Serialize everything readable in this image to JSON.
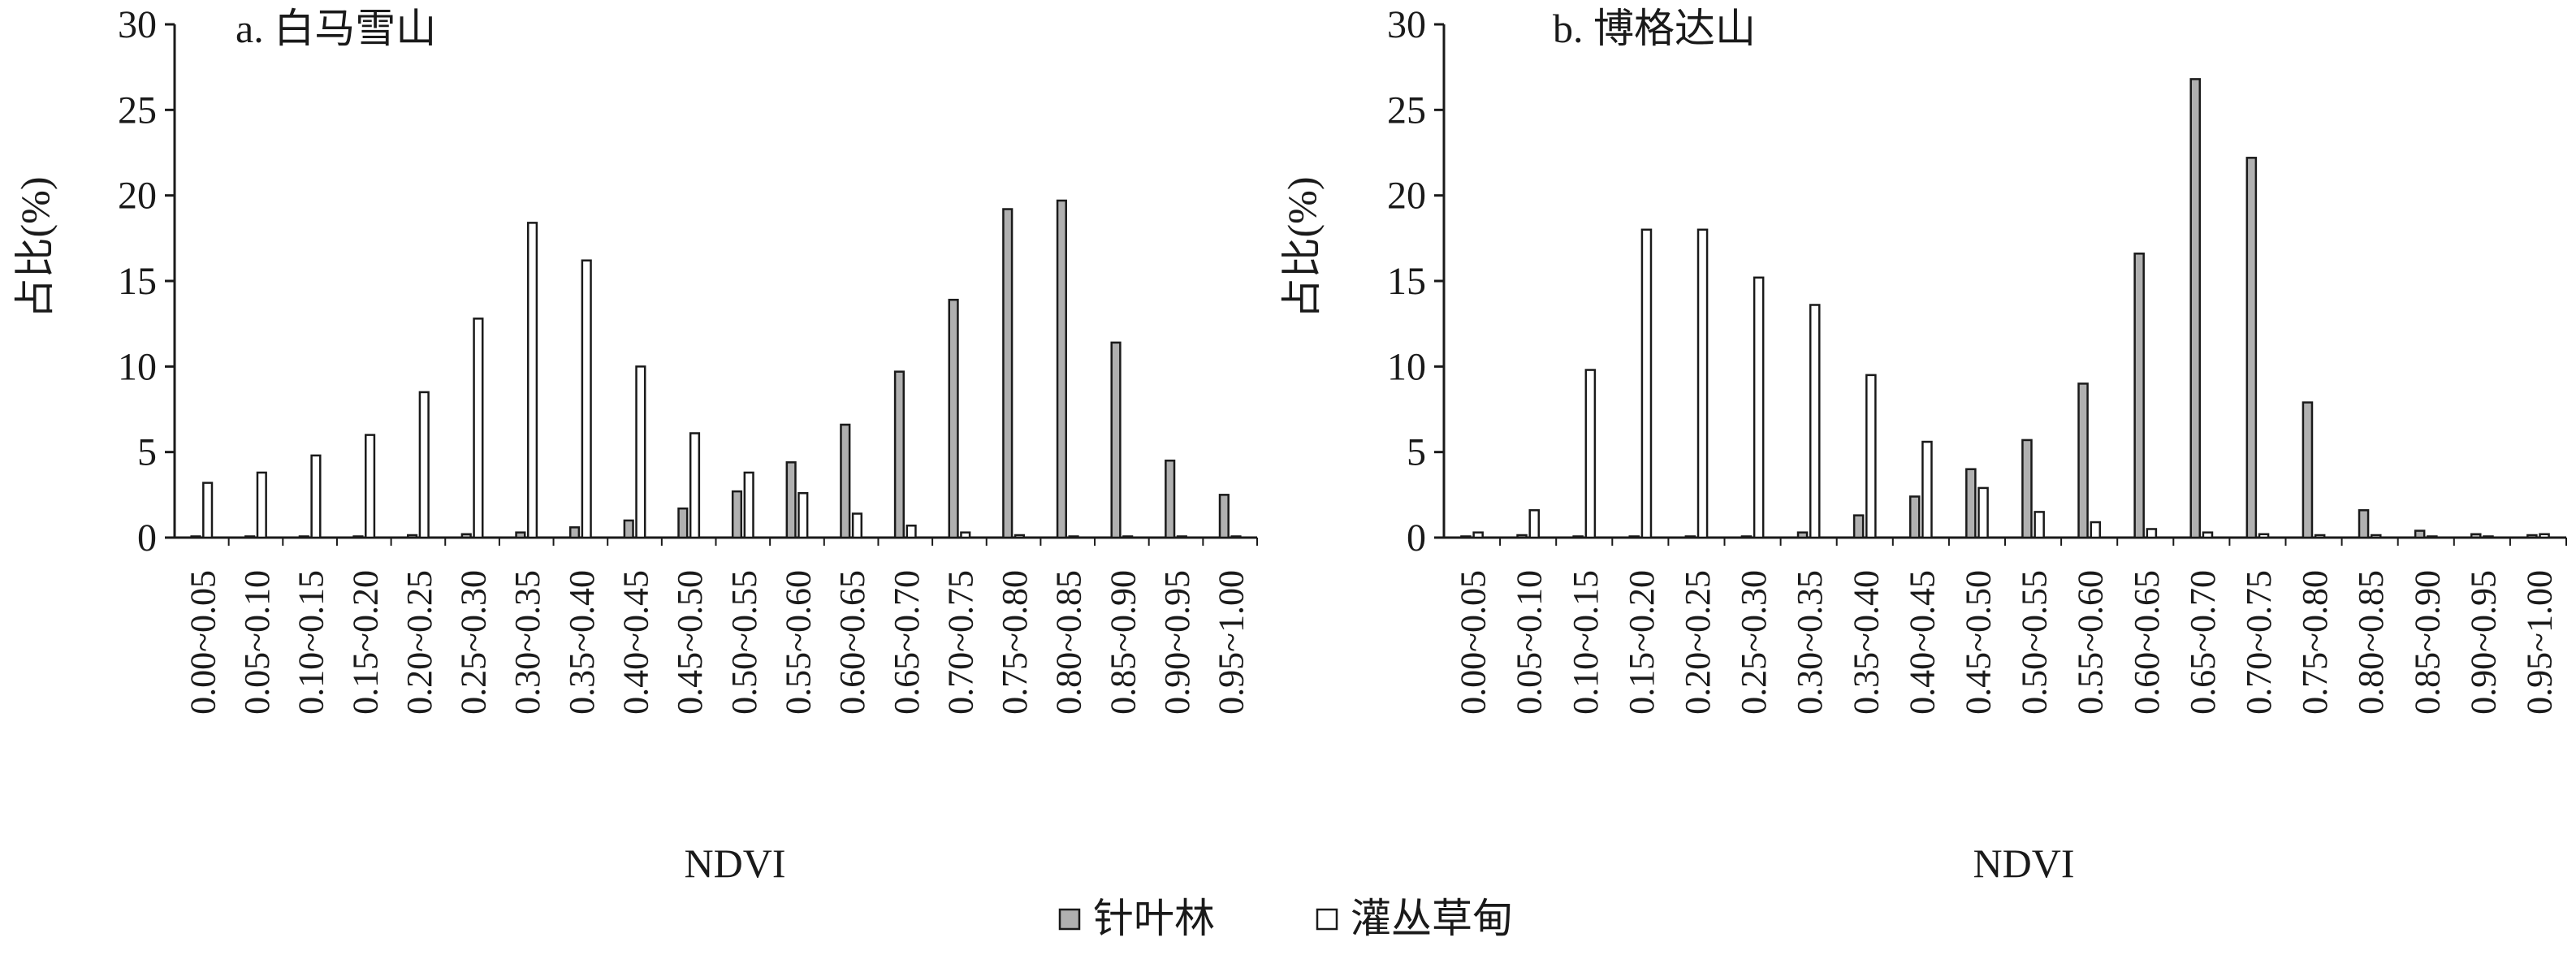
{
  "colors": {
    "conifer": "#b0b0b0",
    "shrub": "#ffffff",
    "stroke": "#1a1a1a"
  },
  "legend": [
    "针叶林",
    "灌丛草甸"
  ],
  "chart_data": [
    {
      "type": "bar",
      "title": "a. 白马雪山",
      "xlabel": "NDVI",
      "ylabel": "占比(%)",
      "ylim": [
        0,
        30
      ],
      "yticks": [
        "0",
        "5",
        "10",
        "15",
        "20",
        "25",
        "30"
      ],
      "grid": false,
      "categories": [
        "0.00~0.05",
        "0.05~0.10",
        "0.10~0.15",
        "0.15~0.20",
        "0.20~0.25",
        "0.25~0.30",
        "0.30~0.35",
        "0.35~0.40",
        "0.40~0.45",
        "0.45~0.50",
        "0.50~0.55",
        "0.55~0.60",
        "0.60~0.65",
        "0.65~0.70",
        "0.70~0.75",
        "0.75~0.80",
        "0.80~0.85",
        "0.85~0.90",
        "0.90~0.95",
        "0.95~1.00"
      ],
      "series": [
        {
          "name": "针叶林",
          "values": [
            0,
            0,
            0,
            0,
            0.1,
            0.2,
            0.3,
            0.6,
            1.0,
            1.7,
            2.7,
            4.4,
            6.6,
            9.7,
            13.9,
            19.2,
            19.7,
            11.4,
            4.5,
            2.5
          ]
        },
        {
          "name": "灌丛草甸",
          "values": [
            3.2,
            3.8,
            4.8,
            6.0,
            8.5,
            12.8,
            18.4,
            16.2,
            10.0,
            6.1,
            3.8,
            2.6,
            1.4,
            0.7,
            0.3,
            0.1,
            0,
            0,
            0,
            0
          ]
        }
      ]
    },
    {
      "type": "bar",
      "title": "b. 博格达山",
      "xlabel": "NDVI",
      "ylabel": "占比(%)",
      "ylim": [
        0,
        30
      ],
      "yticks": [
        "0",
        "5",
        "10",
        "15",
        "20",
        "25",
        "30"
      ],
      "grid": false,
      "categories": [
        "0.00~0.05",
        "0.05~0.10",
        "0.10~0.15",
        "0.15~0.20",
        "0.20~0.25",
        "0.25~0.30",
        "0.30~0.35",
        "0.35~0.40",
        "0.40~0.45",
        "0.45~0.50",
        "0.50~0.55",
        "0.55~0.60",
        "0.60~0.65",
        "0.65~0.70",
        "0.70~0.75",
        "0.75~0.80",
        "0.80~0.85",
        "0.85~0.90",
        "0.90~0.95",
        "0.95~1.00"
      ],
      "series": [
        {
          "name": "针叶林",
          "values": [
            0,
            0.1,
            0,
            0,
            0,
            0,
            0.3,
            1.3,
            2.4,
            4.0,
            5.7,
            9.0,
            16.6,
            26.8,
            22.2,
            7.9,
            1.6,
            0.4,
            0.2,
            0.1
          ]
        },
        {
          "name": "灌丛草甸",
          "values": [
            0.3,
            1.6,
            9.8,
            18.0,
            18.0,
            15.2,
            13.6,
            9.5,
            5.6,
            2.9,
            1.5,
            0.9,
            0.5,
            0.3,
            0.2,
            0.1,
            0.1,
            0,
            0,
            0.2
          ]
        }
      ]
    }
  ]
}
